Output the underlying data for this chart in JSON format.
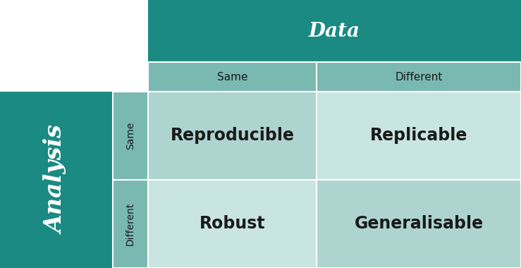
{
  "title_data": "Data",
  "title_analysis": "Analysis",
  "col_headers": [
    "Same",
    "Different"
  ],
  "row_headers": [
    "Same",
    "Different"
  ],
  "cells": [
    [
      "Reproducible",
      "Replicable"
    ],
    [
      "Robust",
      "Generalisable"
    ]
  ],
  "color_header_dark": "#1a8a82",
  "color_header_mid": "#7ab8b2",
  "color_cell_light": "#aed4d0",
  "color_cell_lighter": "#c8e5e2",
  "color_white": "#ffffff",
  "color_black": "#1a1a1a",
  "bg_color": "#ffffff",
  "title_fontsize": 20,
  "header_fontsize": 11,
  "cell_fontsize": 17,
  "analysis_fontsize": 24,
  "analysis_sub_fontsize": 10
}
